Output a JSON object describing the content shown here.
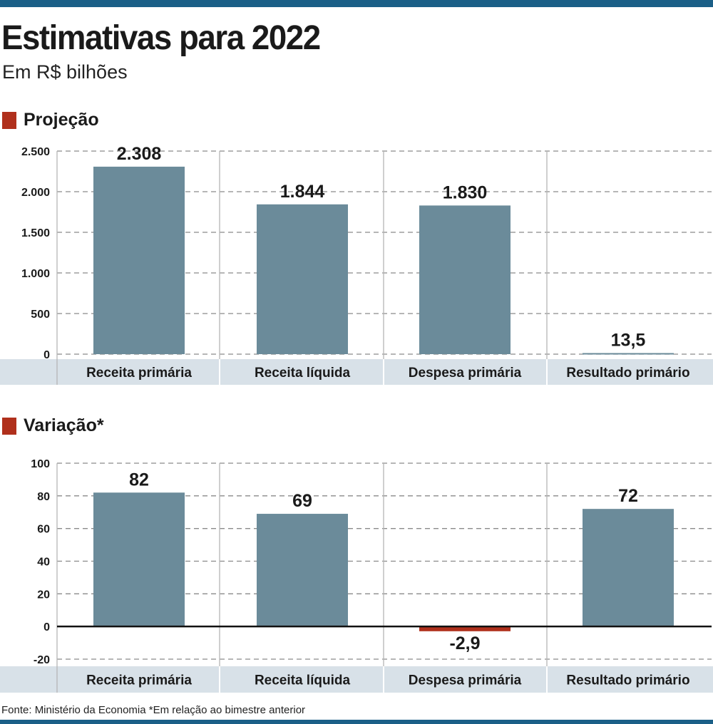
{
  "title": "Estimativas para 2022",
  "subtitle": "Em R$ bilhões",
  "footer": "Fonte: Ministério da Economia *Em relação ao bimestre anterior",
  "colors": {
    "bar": "#6b8b9a",
    "negative": "#b0301c",
    "accent_bar": "#1b5f87",
    "label_band": "#d8e1e8"
  },
  "chart_data": [
    {
      "type": "bar",
      "title": "Projeção",
      "categories": [
        "Receita primária",
        "Receita líquida",
        "Despesa primária",
        "Resultado primário"
      ],
      "values": [
        2308,
        1844,
        1830,
        13.5
      ],
      "value_labels": [
        "2.308",
        "1.844",
        "1.830",
        "13,5"
      ],
      "yticks": [
        0,
        500,
        1000,
        1500,
        2000,
        2500
      ],
      "ytick_labels": [
        "0",
        "500",
        "1.000",
        "1.500",
        "2.000",
        "2.500"
      ],
      "ylim": [
        0,
        2500
      ],
      "grid": true
    },
    {
      "type": "bar",
      "title": "Variação*",
      "categories": [
        "Receita primária",
        "Receita líquida",
        "Despesa primária",
        "Resultado primário"
      ],
      "values": [
        82,
        69,
        -2.9,
        72
      ],
      "value_labels": [
        "82",
        "69",
        "-2,9",
        "72"
      ],
      "yticks": [
        -20,
        0,
        20,
        40,
        60,
        80,
        100
      ],
      "ytick_labels": [
        "-20",
        "0",
        "20",
        "40",
        "60",
        "80",
        "100"
      ],
      "ylim": [
        -20,
        100
      ],
      "grid": true
    }
  ]
}
